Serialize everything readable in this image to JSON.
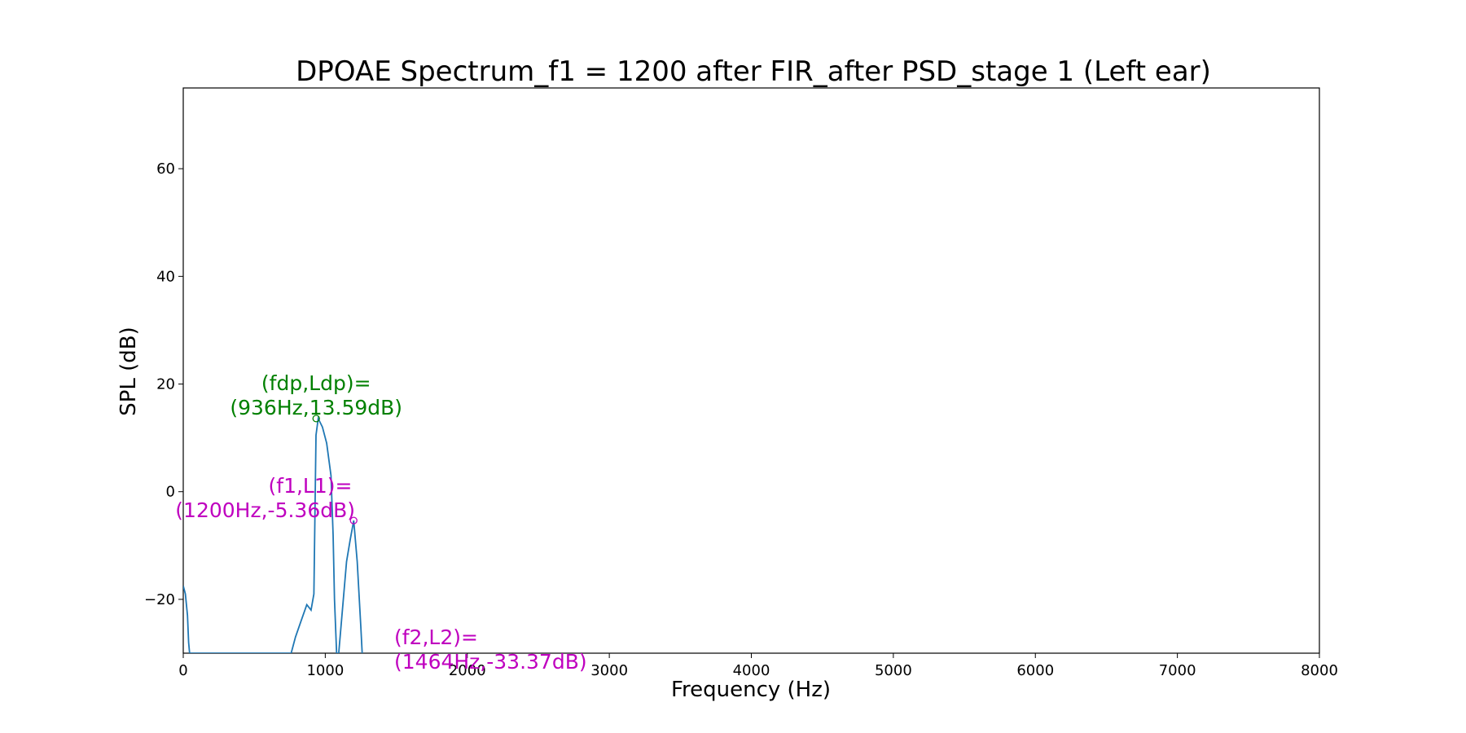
{
  "chart_data": {
    "type": "line",
    "title": "DPOAE Spectrum_f1 = 1200 after FIR_after PSD_stage 1 (Left ear)",
    "xlabel": "Frequency (Hz)",
    "ylabel": "SPL (dB)",
    "xlim": [
      0,
      8000
    ],
    "ylim": [
      -30,
      75
    ],
    "xticks": [
      0,
      1000,
      2000,
      3000,
      4000,
      5000,
      6000,
      7000,
      8000
    ],
    "yticks": [
      -20,
      0,
      20,
      40,
      60
    ],
    "xtick_labels": [
      "0",
      "1000",
      "2000",
      "3000",
      "4000",
      "5000",
      "6000",
      "7000",
      "8000"
    ],
    "ytick_labels": [
      "−20",
      "0",
      "20",
      "40",
      "60"
    ],
    "grid": false,
    "line_color": "#1f77b4",
    "series": [
      {
        "x": [
          0,
          15,
          30,
          38,
          45,
          760,
          790,
          830,
          870,
          900,
          920,
          935,
          950,
          980,
          1010,
          1040,
          1055,
          1065,
          1080,
          1095,
          1150,
          1175,
          1200,
          1225,
          1250,
          1260
        ],
        "y": [
          -17.5,
          -19,
          -23,
          -28,
          -30,
          -30,
          -27,
          -24,
          -21,
          -22,
          -19,
          10.5,
          13.59,
          12,
          9,
          3,
          -8,
          -20,
          -30,
          -30,
          -13,
          -9,
          -5.36,
          -13,
          -25,
          -30
        ]
      }
    ],
    "annotations": [
      {
        "id": "fdp",
        "line1": "(fdp,Ldp)=",
        "line2": "(936Hz,13.59dB)",
        "x": 936,
        "y": 13.59,
        "color": "#008000"
      },
      {
        "id": "f1",
        "line1": "(f1,L1)=",
        "line2": "(1200Hz,-5.36dB)",
        "x": 1200,
        "y": -5.36,
        "color": "#bf00bf"
      },
      {
        "id": "f2",
        "line1": "(f2,L2)=",
        "line2": "(1464Hz,-33.37dB)",
        "x": 1464,
        "y": -33.37,
        "color": "#bf00bf"
      }
    ]
  }
}
